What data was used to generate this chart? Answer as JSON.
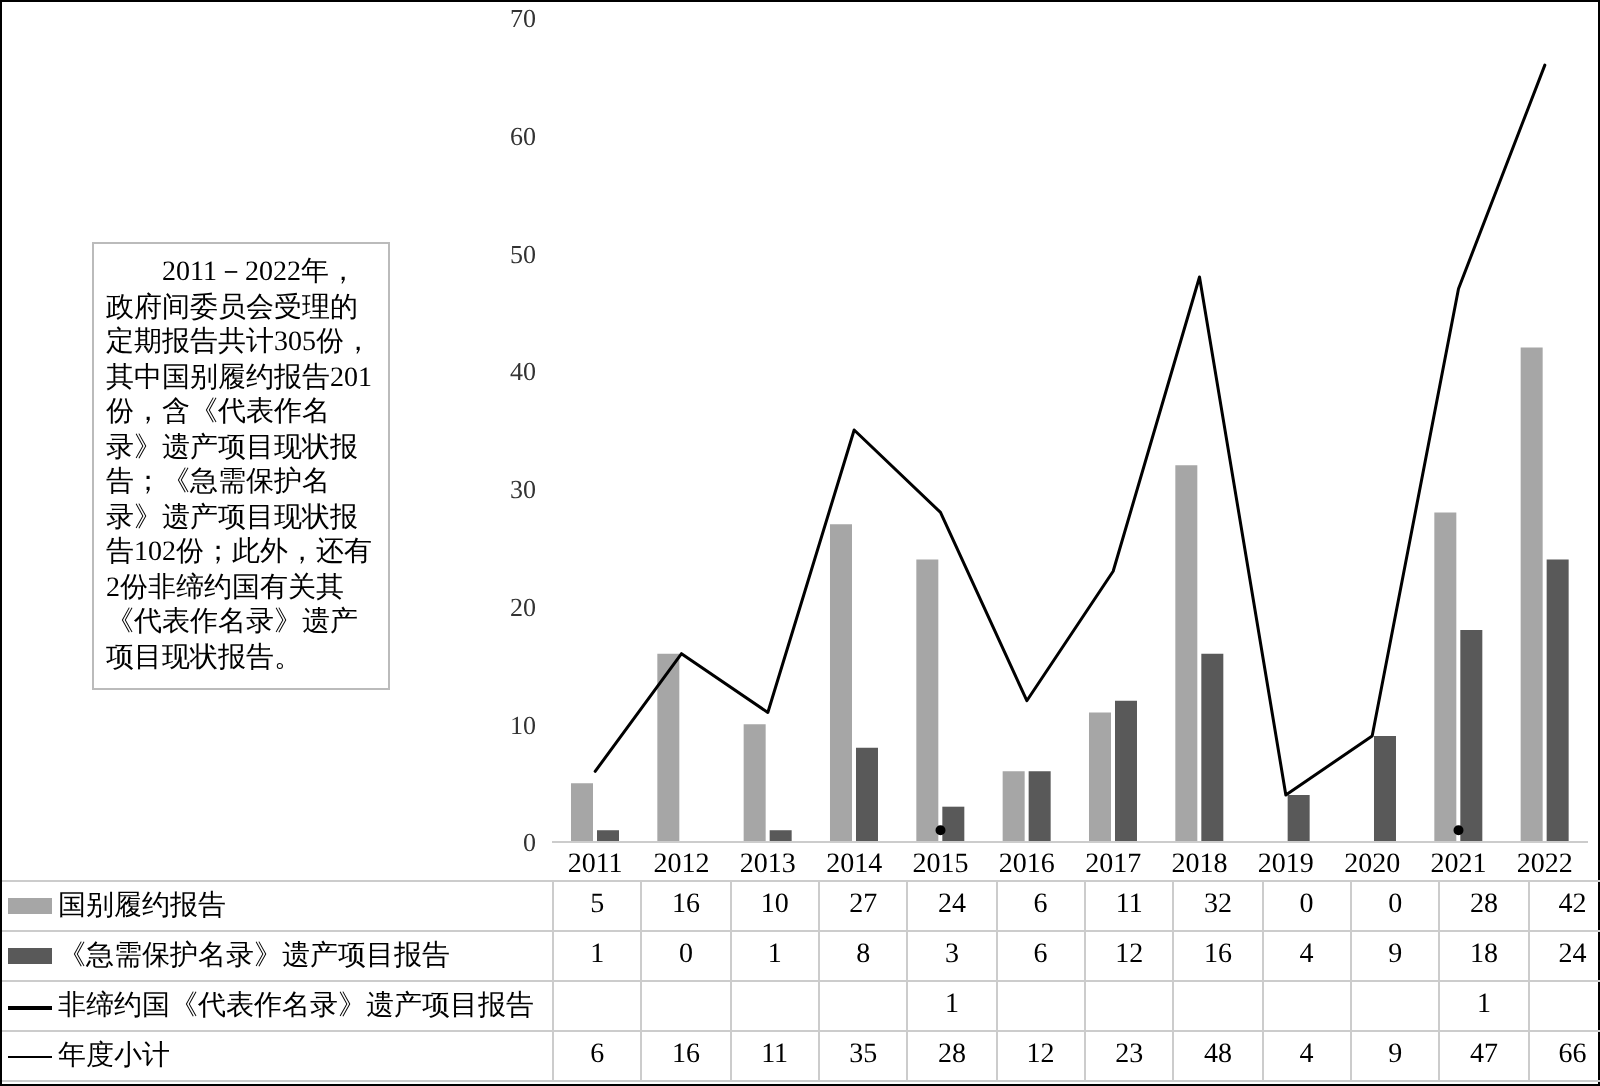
{
  "chart_data": {
    "type": "bar",
    "categories": [
      "2011",
      "2012",
      "2013",
      "2014",
      "2015",
      "2016",
      "2017",
      "2018",
      "2019",
      "2020",
      "2021",
      "2022"
    ],
    "series": [
      {
        "name": "国别履约报告",
        "color": "#a6a6a6",
        "values": [
          5,
          16,
          10,
          27,
          24,
          6,
          11,
          32,
          0,
          0,
          28,
          42
        ]
      },
      {
        "name": "《急需保护名录》遗产项目报告",
        "color": "#595959",
        "values": [
          1,
          0,
          1,
          8,
          3,
          6,
          12,
          16,
          4,
          9,
          18,
          24
        ]
      },
      {
        "name": "非缔约国《代表作名录》遗产项目报告",
        "type": "scatter",
        "color": "#000000",
        "values": [
          null,
          null,
          null,
          null,
          1,
          null,
          null,
          null,
          null,
          null,
          1,
          null
        ]
      },
      {
        "name": "年度小计",
        "type": "line",
        "color": "#000000",
        "values": [
          6,
          16,
          11,
          35,
          28,
          12,
          23,
          48,
          4,
          9,
          47,
          66
        ]
      }
    ],
    "ylim": [
      0,
      70
    ],
    "yticks": [
      0,
      10,
      20,
      30,
      40,
      50,
      60,
      70
    ],
    "grid": false,
    "legend": "bottom",
    "data_labels": true,
    "annotations": [
      "2011－2022年，政府间委员会受理的定期报告共计305份，其中国别履约报告201份，含《代表作名录》遗产项目现状报告；《急需保护名录》遗产项目现状报告102份；此外，还有2份非缔约国有关其《代表作名录》遗产项目现状报告。"
    ]
  }
}
